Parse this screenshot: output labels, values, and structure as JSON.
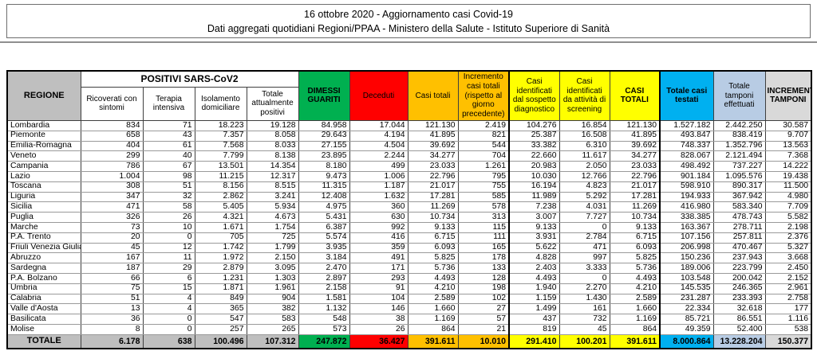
{
  "title": {
    "line1": "16 ottobre 2020 - Aggiornamento casi Covid-19",
    "line2": "Dati aggregati quotidiani Regioni/PPAA - Ministero della Salute - Istituto Superiore di Sanità"
  },
  "colors": {
    "gray": "#BFBFBF",
    "green": "#00B050",
    "red": "#FF0000",
    "orange": "#FFC000",
    "yellow": "#FFFF00",
    "cyan": "#00B0F0",
    "lblue": "#B8CCE4",
    "lgray": "#D9D9D9"
  },
  "table": {
    "region_header": "REGIONE",
    "group_header": "POSITIVI SARS-CoV2",
    "columns": [
      "Ricoverati con sintomi",
      "Terapia intensiva",
      "Isolamento domiciliare",
      "Totale attualmente positivi",
      "DIMESSI GUARITI",
      "Deceduti",
      "Casi totali",
      "Incremento casi totali (rispetto al giorno precedente)",
      "Casi identificati dal sospetto diagnostico",
      "Casi identificati da attività di screening",
      "CASI TOTALI",
      "Totale casi testati",
      "Totale tamponi effettuati",
      "INCREMENTO TAMPONI"
    ],
    "rows": [
      {
        "region": "Lombardia",
        "values": [
          "834",
          "71",
          "18.223",
          "19.128",
          "84.958",
          "17.044",
          "121.130",
          "2.419",
          "104.276",
          "16.854",
          "121.130",
          "1.527.182",
          "2.442.250",
          "30.587"
        ]
      },
      {
        "region": "Piemonte",
        "values": [
          "658",
          "43",
          "7.357",
          "8.058",
          "29.643",
          "4.194",
          "41.895",
          "821",
          "25.387",
          "16.508",
          "41.895",
          "493.847",
          "838.419",
          "9.707"
        ]
      },
      {
        "region": "Emilia-Romagna",
        "values": [
          "404",
          "61",
          "7.568",
          "8.033",
          "27.155",
          "4.504",
          "39.692",
          "544",
          "33.382",
          "6.310",
          "39.692",
          "748.337",
          "1.352.796",
          "13.563"
        ]
      },
      {
        "region": "Veneto",
        "values": [
          "299",
          "40",
          "7.799",
          "8.138",
          "23.895",
          "2.244",
          "34.277",
          "704",
          "22.660",
          "11.617",
          "34.277",
          "828.067",
          "2.121.494",
          "7.368"
        ]
      },
      {
        "region": "Campania",
        "values": [
          "786",
          "67",
          "13.501",
          "14.354",
          "8.180",
          "499",
          "23.033",
          "1.261",
          "20.983",
          "2.050",
          "23.033",
          "498.492",
          "737.227",
          "14.222"
        ]
      },
      {
        "region": "Lazio",
        "values": [
          "1.004",
          "98",
          "11.215",
          "12.317",
          "9.473",
          "1.006",
          "22.796",
          "795",
          "10.030",
          "12.766",
          "22.796",
          "901.184",
          "1.095.576",
          "19.438"
        ]
      },
      {
        "region": "Toscana",
        "values": [
          "308",
          "51",
          "8.156",
          "8.515",
          "11.315",
          "1.187",
          "21.017",
          "755",
          "16.194",
          "4.823",
          "21.017",
          "598.910",
          "890.317",
          "11.500"
        ]
      },
      {
        "region": "Liguria",
        "values": [
          "347",
          "32",
          "2.862",
          "3.241",
          "12.408",
          "1.632",
          "17.281",
          "585",
          "11.989",
          "5.292",
          "17.281",
          "194.933",
          "367.942",
          "4.980"
        ]
      },
      {
        "region": "Sicilia",
        "values": [
          "471",
          "58",
          "5.405",
          "5.934",
          "4.975",
          "360",
          "11.269",
          "578",
          "7.238",
          "4.031",
          "11.269",
          "416.980",
          "583.340",
          "7.709"
        ]
      },
      {
        "region": "Puglia",
        "values": [
          "326",
          "26",
          "4.321",
          "4.673",
          "5.431",
          "630",
          "10.734",
          "313",
          "3.007",
          "7.727",
          "10.734",
          "338.385",
          "478.743",
          "5.582"
        ]
      },
      {
        "region": "Marche",
        "values": [
          "73",
          "10",
          "1.671",
          "1.754",
          "6.387",
          "992",
          "9.133",
          "115",
          "9.133",
          "0",
          "9.133",
          "163.367",
          "278.711",
          "2.198"
        ]
      },
      {
        "region": "P.A. Trento",
        "values": [
          "20",
          "0",
          "705",
          "725",
          "5.574",
          "416",
          "6.715",
          "111",
          "3.931",
          "2.784",
          "6.715",
          "107.156",
          "257.811",
          "2.376"
        ]
      },
      {
        "region": "Friuli Venezia Giulia",
        "values": [
          "45",
          "12",
          "1.742",
          "1.799",
          "3.935",
          "359",
          "6.093",
          "165",
          "5.622",
          "471",
          "6.093",
          "206.998",
          "470.467",
          "5.327"
        ]
      },
      {
        "region": "Abruzzo",
        "values": [
          "167",
          "11",
          "1.972",
          "2.150",
          "3.184",
          "491",
          "5.825",
          "178",
          "4.828",
          "997",
          "5.825",
          "150.236",
          "237.943",
          "3.668"
        ]
      },
      {
        "region": "Sardegna",
        "values": [
          "187",
          "29",
          "2.879",
          "3.095",
          "2.470",
          "171",
          "5.736",
          "133",
          "2.403",
          "3.333",
          "5.736",
          "189.006",
          "223.799",
          "2.450"
        ]
      },
      {
        "region": "P.A. Bolzano",
        "values": [
          "66",
          "6",
          "1.231",
          "1.303",
          "2.897",
          "293",
          "4.493",
          "128",
          "4.493",
          "0",
          "4.493",
          "103.548",
          "200.042",
          "2.152"
        ]
      },
      {
        "region": "Umbria",
        "values": [
          "75",
          "15",
          "1.871",
          "1.961",
          "2.158",
          "91",
          "4.210",
          "198",
          "1.940",
          "2.270",
          "4.210",
          "145.535",
          "246.365",
          "2.961"
        ]
      },
      {
        "region": "Calabria",
        "values": [
          "51",
          "4",
          "849",
          "904",
          "1.581",
          "104",
          "2.589",
          "102",
          "1.159",
          "1.430",
          "2.589",
          "231.287",
          "233.393",
          "2.758"
        ]
      },
      {
        "region": "Valle d'Aosta",
        "values": [
          "13",
          "4",
          "365",
          "382",
          "1.132",
          "146",
          "1.660",
          "27",
          "1.499",
          "161",
          "1.660",
          "22.334",
          "32.618",
          "177"
        ]
      },
      {
        "region": "Basilicata",
        "values": [
          "36",
          "0",
          "547",
          "583",
          "548",
          "38",
          "1.169",
          "57",
          "437",
          "732",
          "1.169",
          "85.721",
          "86.551",
          "1.116"
        ]
      },
      {
        "region": "Molise",
        "values": [
          "8",
          "0",
          "257",
          "265",
          "573",
          "26",
          "864",
          "21",
          "819",
          "45",
          "864",
          "49.359",
          "52.400",
          "538"
        ]
      }
    ],
    "total_row": {
      "region": "TOTALE",
      "values": [
        "6.178",
        "638",
        "100.496",
        "107.312",
        "247.872",
        "36.427",
        "391.611",
        "10.010",
        "291.410",
        "100.201",
        "391.611",
        "8.000.864",
        "13.228.204",
        "150.377"
      ]
    }
  }
}
